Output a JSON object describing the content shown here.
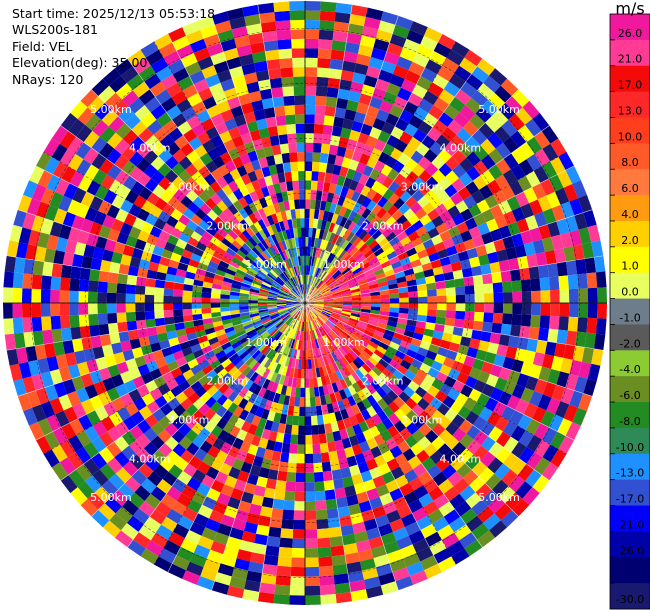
{
  "header": {
    "start_time": "Start time: 2025/12/13 05:53:18",
    "instrument": "WLS200s-181",
    "field": "Field: VEL",
    "elevation": "Elevation(deg): 35.00",
    "nrays": "NRays: 120"
  },
  "chart_data": {
    "type": "heatmap",
    "projection": "polar-ppi",
    "field": "VEL",
    "units": "m/s",
    "elevation_deg": 35.0,
    "nrays": 120,
    "range_rings_km": [
      1.0,
      2.0,
      3.0,
      4.0,
      5.0
    ],
    "ring_labels": [
      "1.00km",
      "2.00km",
      "3.00km",
      "4.00km",
      "5.00km"
    ],
    "colorbar": {
      "unit_label": "m/s",
      "vmin": -30.0,
      "vmax": 26.0,
      "ticks": [
        "26.0",
        "21.0",
        "17.0",
        "13.0",
        "10.0",
        "8.0",
        "6.0",
        "4.0",
        "2.0",
        "1.0",
        "0.0",
        "-1.0",
        "-2.0",
        "-4.0",
        "-6.0",
        "-8.0",
        "-10.0",
        "-13.0",
        "-17.0",
        "-21.0",
        "-26.0",
        "-30.0"
      ],
      "colors": [
        "#f0189c",
        "#ff3b96",
        "#f50a0a",
        "#ff2828",
        "#ff3e1e",
        "#ff5a28",
        "#ff7a3c",
        "#ff9b10",
        "#ffd000",
        "#ffff00",
        "#e8ff60",
        "#6e7d8c",
        "#5a5a5a",
        "#8ccc32",
        "#6b8e23",
        "#228b22",
        "#2e8b57",
        "#1e90ff",
        "#3150d2",
        "#0000ff",
        "#0000aa",
        "#000070",
        "#191970"
      ]
    },
    "approaching_sector": "west-southwest (negative, blue/green)",
    "receding_sector": "east-southeast (positive, red/yellow)",
    "grid": true
  }
}
